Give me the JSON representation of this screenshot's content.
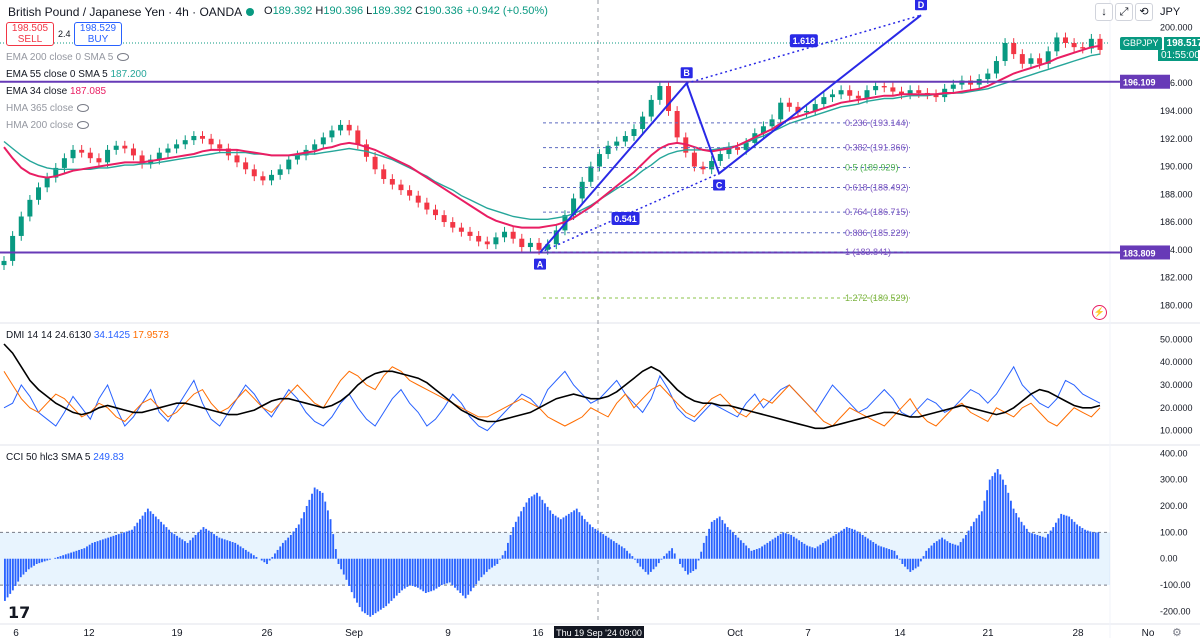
{
  "header": {
    "symbol_title": "British Pound / Japanese Yen · 4h · OANDA",
    "open_label": "O",
    "open": "189.392",
    "high_label": "H",
    "high": "190.396",
    "low_label": "L",
    "low": "189.392",
    "close_label": "C",
    "close": "190.336",
    "change": "+0.942 (+0.50%)",
    "sell_price": "198.505",
    "sell_label": "SELL",
    "spread": "2.4",
    "buy_price": "198.529",
    "buy_label": "BUY",
    "currency": "JPY"
  },
  "indicators": {
    "ema200": "EMA 200 close 0 SMA 5",
    "ema55": "EMA 55 close 0 SMA 5",
    "ema55_value": "187.200",
    "ema34": "EMA 34 close",
    "ema34_value": "187.085",
    "hma365": "HMA 365 close",
    "hma200": "HMA 200 close",
    "dmi": "DMI 14 14",
    "dmi_adx": "24.6130",
    "dmi_plus": "34.1425",
    "dmi_minus": "17.9573",
    "cci": "CCI 50 hlc3 SMA 5",
    "cci_value": "249.83"
  },
  "price_tag": {
    "symbol": "GBPJPY",
    "price": "198.517",
    "countdown": "01:55:00"
  },
  "colors": {
    "up": "#089981",
    "down": "#f23645",
    "ema34": "#e91e63",
    "ema55": "#26a69a",
    "hline": "#673ab7",
    "pattern": "#2929e6",
    "fib": "#5c6bc0",
    "fib_ext": "#8bc34a",
    "dmi_plus": "#2962ff",
    "dmi_minus": "#ff6d00",
    "dmi_adx": "#000000",
    "cci": "#2962ff"
  },
  "chart_data": {
    "type": "candlestick",
    "title": "British Pound / Japanese Yen · 4h · OANDA",
    "y_range": [
      178.8,
      200.7
    ],
    "y_ticks": [
      "200.000",
      "198.000",
      "196.000",
      "194.000",
      "192.000",
      "190.000",
      "188.000",
      "186.000",
      "184.000",
      "182.000",
      "180.000"
    ],
    "x_ticks": [
      "6",
      "12",
      "19",
      "26",
      "Sep",
      "9",
      "16",
      "Oct",
      "7",
      "14",
      "21",
      "28",
      "No"
    ],
    "crosshair_time": "Thu 19 Sep '24   09:00",
    "close_series": [
      183.2,
      185.0,
      186.4,
      187.6,
      188.5,
      189.2,
      189.9,
      190.6,
      191.2,
      191.0,
      190.6,
      190.3,
      191.2,
      191.5,
      191.3,
      190.8,
      190.2,
      190.5,
      191.0,
      191.3,
      191.6,
      191.9,
      192.2,
      192.0,
      191.6,
      191.3,
      190.8,
      190.3,
      189.8,
      189.3,
      189.0,
      189.4,
      189.8,
      190.5,
      190.8,
      191.2,
      191.6,
      192.1,
      192.6,
      193.0,
      192.6,
      191.6,
      190.7,
      189.8,
      189.1,
      188.7,
      188.3,
      187.9,
      187.4,
      186.9,
      186.5,
      186.0,
      185.6,
      185.3,
      185.0,
      184.6,
      184.4,
      184.9,
      185.3,
      184.8,
      184.2,
      184.5,
      184.0,
      184.4,
      185.4,
      186.5,
      187.7,
      188.9,
      190.0,
      190.9,
      191.5,
      191.8,
      192.2,
      192.7,
      193.6,
      194.8,
      195.8,
      194.0,
      192.1,
      191.0,
      190.0,
      189.8,
      190.4,
      190.9,
      191.4,
      191.2,
      191.7,
      192.4,
      192.9,
      193.4,
      194.6,
      194.3,
      193.9,
      194.0,
      194.5,
      195.0,
      195.2,
      195.5,
      195.1,
      194.9,
      195.5,
      195.8,
      195.7,
      195.4,
      195.2,
      195.5,
      195.3,
      195.2,
      195.0,
      195.6,
      195.9,
      196.2,
      195.9,
      196.3,
      196.7,
      197.6,
      198.9,
      198.1,
      197.4,
      197.8,
      197.4,
      198.3,
      199.3,
      198.9,
      198.6,
      198.5,
      199.2,
      198.4
    ],
    "ema34_series": [
      191.4,
      190.6,
      189.9,
      189.5,
      189.3,
      189.2,
      189.3,
      189.5,
      189.7,
      189.8,
      189.9,
      190.0,
      190.1,
      190.2,
      190.3,
      190.3,
      190.3,
      190.4,
      190.5,
      190.6,
      190.7,
      190.8,
      190.9,
      191.1,
      191.2,
      191.2,
      191.2,
      191.2,
      191.1,
      191.0,
      190.9,
      190.8,
      190.8,
      190.8,
      190.9,
      191.0,
      191.1,
      191.3,
      191.4,
      191.6,
      191.7,
      191.6,
      191.4,
      191.2,
      190.9,
      190.6,
      190.3,
      190.0,
      189.6,
      189.2,
      188.8,
      188.4,
      188.0,
      187.6,
      187.2,
      186.8,
      186.4,
      186.1,
      185.9,
      185.7,
      185.6,
      185.6,
      185.6,
      185.7,
      185.8,
      186.0,
      186.3,
      186.7,
      187.1,
      187.6,
      188.1,
      188.6,
      189.1,
      189.6,
      190.2,
      190.8,
      191.3,
      191.6,
      191.7,
      191.6,
      191.4,
      191.2,
      191.1,
      191.2,
      191.3,
      191.5,
      191.8,
      192.1,
      192.4,
      192.7,
      193.1,
      193.4,
      193.6,
      193.8,
      194.0,
      194.2,
      194.4,
      194.6,
      194.7,
      194.8,
      194.9,
      195.0,
      195.1,
      195.1,
      195.2,
      195.2,
      195.2,
      195.2,
      195.2,
      195.3,
      195.3,
      195.4,
      195.5,
      195.6,
      195.8,
      196.1,
      196.4,
      196.7,
      196.9,
      197.1,
      197.3,
      197.5,
      197.8,
      198.0,
      198.2,
      198.4,
      198.6,
      198.7
    ],
    "ema55_series": [
      191.8,
      191.3,
      190.8,
      190.4,
      190.1,
      189.9,
      189.8,
      189.8,
      189.8,
      189.8,
      189.8,
      189.9,
      189.9,
      190.0,
      190.1,
      190.1,
      190.2,
      190.2,
      190.3,
      190.4,
      190.5,
      190.6,
      190.7,
      190.8,
      190.9,
      191.0,
      191.0,
      191.0,
      191.0,
      190.9,
      190.9,
      190.8,
      190.8,
      190.8,
      190.8,
      190.9,
      190.9,
      191.0,
      191.1,
      191.2,
      191.3,
      191.2,
      191.1,
      190.9,
      190.7,
      190.5,
      190.2,
      189.9,
      189.6,
      189.3,
      188.9,
      188.6,
      188.3,
      187.9,
      187.6,
      187.3,
      187.0,
      186.8,
      186.6,
      186.4,
      186.3,
      186.2,
      186.2,
      186.2,
      186.3,
      186.4,
      186.6,
      186.9,
      187.2,
      187.6,
      188.0,
      188.4,
      188.8,
      189.2,
      189.7,
      190.1,
      190.6,
      190.9,
      191.1,
      191.2,
      191.2,
      191.2,
      191.2,
      191.3,
      191.4,
      191.5,
      191.7,
      192.0,
      192.2,
      192.5,
      192.8,
      193.1,
      193.3,
      193.5,
      193.7,
      193.9,
      194.1,
      194.3,
      194.4,
      194.5,
      194.7,
      194.8,
      194.9,
      194.9,
      195.0,
      195.1,
      195.1,
      195.1,
      195.2,
      195.2,
      195.3,
      195.3,
      195.4,
      195.5,
      195.6,
      195.8,
      196.0,
      196.2,
      196.4,
      196.6,
      196.8,
      197.0,
      197.2,
      197.4,
      197.6,
      197.8,
      198.0,
      198.1
    ],
    "horizontal_lines": [
      {
        "label": "196.109",
        "value": 196.109
      },
      {
        "label": "183.809",
        "value": 183.809
      }
    ],
    "harmonic_points": [
      {
        "label": "A",
        "value": 183.8,
        "slot": 0.0
      },
      {
        "label": "B",
        "value": 196.0,
        "slot": 0.385
      },
      {
        "label": "C",
        "value": 189.5,
        "slot": 0.47
      },
      {
        "label": "D",
        "value": 200.9,
        "slot": 1.0
      }
    ],
    "harmonic_ratios": [
      "1.618",
      "0.541"
    ],
    "fib_levels": [
      {
        "label": "0.236 (193.144)",
        "value": 193.144
      },
      {
        "label": "0.382 (191.366)",
        "value": 191.366
      },
      {
        "label": "0.5 (189.929)",
        "value": 189.929
      },
      {
        "label": "0.618 (188.492)",
        "value": 188.492
      },
      {
        "label": "0.764 (186.715)",
        "value": 186.715
      },
      {
        "label": "0.886 (185.229)",
        "value": 185.229
      },
      {
        "label": "1 (183.841)",
        "value": 183.841
      },
      {
        "label": "1.272 (180.529)",
        "value": 180.529
      }
    ],
    "dmi": {
      "y_range": [
        5,
        55
      ],
      "y_ticks": [
        "50.0000",
        "40.0000",
        "30.0000",
        "20.0000",
        "10.0000"
      ],
      "plus_series": [
        20,
        22,
        30,
        25,
        18,
        15,
        12,
        18,
        25,
        20,
        15,
        24,
        30,
        20,
        12,
        16,
        22,
        28,
        18,
        14,
        20,
        26,
        32,
        22,
        15,
        12,
        18,
        24,
        30,
        26,
        20,
        16,
        22,
        28,
        24,
        18,
        14,
        12,
        16,
        22,
        26,
        20,
        15,
        12,
        18,
        24,
        28,
        22,
        18,
        12,
        15,
        20,
        26,
        22,
        16,
        12,
        10,
        14,
        18,
        22,
        26,
        24,
        20,
        28,
        32,
        36,
        30,
        26,
        22,
        24,
        28,
        32,
        26,
        22,
        18,
        24,
        34,
        28,
        20,
        16,
        14,
        18,
        22,
        20,
        18,
        16,
        22,
        26,
        20,
        24,
        28,
        30,
        26,
        22,
        18,
        24,
        30,
        26,
        22,
        18,
        20,
        24,
        28,
        24,
        18,
        16,
        20,
        24,
        22,
        18,
        20,
        24,
        28,
        26,
        22,
        26,
        32,
        38,
        30,
        26,
        22,
        20,
        24,
        32,
        30,
        26,
        24,
        22
      ],
      "minus_series": [
        36,
        30,
        24,
        20,
        18,
        22,
        26,
        24,
        20,
        16,
        18,
        22,
        20,
        16,
        14,
        18,
        22,
        24,
        20,
        16,
        18,
        22,
        26,
        28,
        22,
        18,
        20,
        24,
        28,
        24,
        20,
        18,
        22,
        26,
        30,
        26,
        22,
        20,
        26,
        32,
        36,
        34,
        30,
        28,
        34,
        38,
        36,
        32,
        30,
        28,
        26,
        24,
        22,
        20,
        18,
        16,
        16,
        18,
        20,
        22,
        24,
        22,
        20,
        16,
        14,
        12,
        14,
        16,
        20,
        18,
        16,
        22,
        26,
        20,
        24,
        28,
        30,
        26,
        22,
        18,
        16,
        20,
        24,
        26,
        22,
        18,
        16,
        20,
        24,
        22,
        26,
        30,
        26,
        22,
        18,
        14,
        12,
        16,
        20,
        18,
        16,
        14,
        12,
        16,
        20,
        24,
        18,
        14,
        12,
        16,
        20,
        22,
        18,
        16,
        14,
        20,
        18,
        16,
        20,
        22,
        18,
        14,
        12,
        16,
        20,
        18,
        16,
        20
      ],
      "adx_series": [
        48,
        44,
        38,
        32,
        28,
        25,
        22,
        20,
        18,
        17,
        18,
        20,
        21,
        20,
        19,
        18,
        18,
        19,
        20,
        21,
        22,
        22,
        21,
        20,
        19,
        18,
        17,
        17,
        18,
        19,
        21,
        23,
        24,
        24,
        23,
        22,
        21,
        20,
        21,
        23,
        26,
        30,
        33,
        35,
        36,
        36,
        35,
        34,
        33,
        31,
        28,
        25,
        22,
        19,
        17,
        15,
        14,
        14,
        15,
        16,
        17,
        18,
        20,
        22,
        24,
        25,
        26,
        25,
        24,
        24,
        25,
        27,
        30,
        33,
        36,
        38,
        36,
        32,
        28,
        25,
        23,
        22,
        22,
        21,
        21,
        20,
        19,
        18,
        17,
        16,
        15,
        14,
        13,
        12,
        11,
        11,
        12,
        13,
        14,
        15,
        16,
        17,
        18,
        18,
        17,
        16,
        16,
        17,
        18,
        19,
        20,
        21,
        20,
        19,
        18,
        17,
        18,
        20,
        23,
        26,
        28,
        27,
        25,
        23,
        21,
        20,
        20,
        21
      ]
    },
    "cci": {
      "y_range": [
        -240,
        420
      ],
      "y_ticks": [
        "400.00",
        "300.00",
        "200.00",
        "100.00",
        "0.00",
        "-100.00",
        "-200.00"
      ],
      "bands": [
        100,
        -100
      ],
      "values": [
        -160,
        -120,
        -70,
        -40,
        -20,
        -10,
        0,
        10,
        20,
        30,
        40,
        60,
        70,
        80,
        90,
        100,
        110,
        150,
        190,
        160,
        130,
        100,
        80,
        60,
        90,
        120,
        100,
        80,
        70,
        60,
        40,
        20,
        0,
        -20,
        20,
        60,
        90,
        130,
        200,
        270,
        250,
        150,
        -20,
        -80,
        -150,
        -200,
        -220,
        -200,
        -180,
        -150,
        -120,
        -100,
        -110,
        -130,
        -120,
        -100,
        -90,
        -120,
        -150,
        -110,
        -70,
        -40,
        -20,
        30,
        120,
        180,
        230,
        250,
        210,
        170,
        150,
        170,
        190,
        150,
        120,
        100,
        80,
        60,
        40,
        10,
        -30,
        -60,
        -30,
        10,
        40,
        -20,
        -60,
        -40,
        60,
        140,
        160,
        120,
        90,
        60,
        30,
        40,
        60,
        80,
        100,
        90,
        70,
        50,
        40,
        60,
        80,
        100,
        120,
        110,
        90,
        70,
        50,
        40,
        30,
        -20,
        -50,
        -30,
        30,
        60,
        80,
        60,
        50,
        90,
        140,
        180,
        300,
        340,
        280,
        190,
        140,
        100,
        90,
        80,
        120,
        170,
        160,
        130,
        110,
        100
      ]
    }
  }
}
